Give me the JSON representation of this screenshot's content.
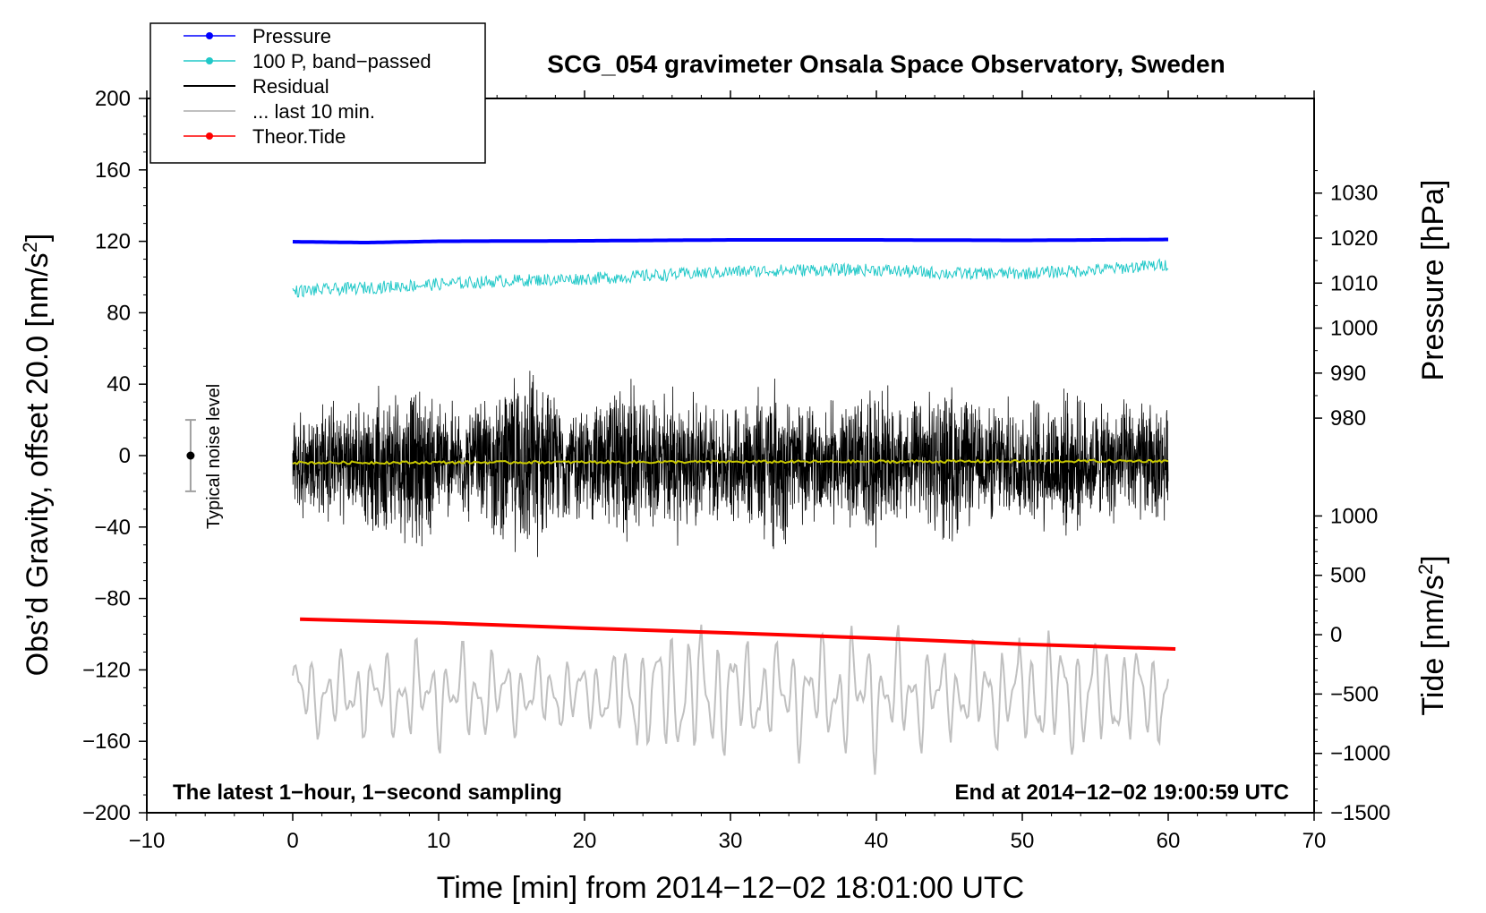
{
  "chart_data": {
    "type": "line",
    "title": "SCG_054 gravimeter Onsala Space Observatory, Sweden",
    "xlabel": "Time [min] from 2014−12−02 18:01:00 UTC",
    "ylabel_left": "Obs’d Gravity, offset 20.0 [nm/s²]",
    "ylabel_left_main": "Obs’d Gravity, offset 20.0 [nm/s",
    "ylabel_left_sup": "2",
    "ylabel_left_end": "]",
    "ylabel_right_top": "Pressure [hPa]",
    "ylabel_right_bottom_main": "Tide [nm/s",
    "ylabel_right_bottom_sup": "2",
    "ylabel_right_bottom_end": "]",
    "xlim": [
      -10,
      70
    ],
    "ylim": [
      -200,
      200
    ],
    "pressure_axis": {
      "data_range": [
        980,
        1030
      ],
      "maps_to_gravity": [
        21,
        147
      ]
    },
    "tide_axis": {
      "data_range": [
        -1500,
        1000
      ],
      "maps_to_gravity": [
        -200,
        -33.8
      ]
    },
    "x_ticks": [
      "−10",
      "0",
      "10",
      "20",
      "30",
      "40",
      "50",
      "60",
      "70"
    ],
    "x_tick_values": [
      -10,
      0,
      10,
      20,
      30,
      40,
      50,
      60,
      70
    ],
    "y_ticks": [
      "200",
      "160",
      "120",
      "80",
      "40",
      "0",
      "−40",
      "−80",
      "−120",
      "−160",
      "−200"
    ],
    "y_tick_values": [
      200,
      160,
      120,
      80,
      40,
      0,
      -40,
      -80,
      -120,
      -160,
      -200
    ],
    "pressure_ticks": [
      "1030",
      "1020",
      "1010",
      "1000",
      "990",
      "980"
    ],
    "pressure_tick_values": [
      1030,
      1020,
      1010,
      1000,
      990,
      980
    ],
    "tide_ticks": [
      "1000",
      "500",
      "0",
      "−500",
      "−1000",
      "−1500"
    ],
    "tide_tick_values": [
      1000,
      500,
      0,
      -500,
      -1000,
      -1500
    ],
    "legend": [
      {
        "label": "Pressure",
        "color": "#0000ff",
        "marker": true
      },
      {
        "label": "100 P, band−passed",
        "color": "#20c8c8",
        "marker": true
      },
      {
        "label": "Residual",
        "color": "#000000",
        "marker": false
      },
      {
        "label": "... last 10 min.",
        "color": "#c0c0c0",
        "marker": false
      },
      {
        "label": "Theor.Tide",
        "color": "#ff0000",
        "marker": true
      }
    ],
    "legend_placement": "top-left",
    "annotation_left": "The latest 1−hour, 1−second sampling",
    "annotation_right": "End at 2014−12−02 19:00:59 UTC",
    "noise_label": "Typical noise level",
    "noise_level": {
      "x": -7,
      "center": 0,
      "half_range": 20
    },
    "series": [
      {
        "name": "Pressure",
        "unit": "hPa",
        "color": "#0000ff",
        "x": [
          0,
          5,
          10,
          20,
          30,
          40,
          50,
          60
        ],
        "values": [
          1019.2,
          1019.0,
          1019.3,
          1019.4,
          1019.6,
          1019.6,
          1019.5,
          1019.7
        ]
      },
      {
        "name": "100 P, band-passed",
        "unit": "nm/s² (gravity axis)",
        "color": "#20c8c8",
        "x": [
          0,
          5,
          10,
          15,
          20,
          25,
          30,
          35,
          40,
          45,
          50,
          55,
          60
        ],
        "values": [
          92,
          94,
          96,
          98,
          99,
          101,
          103,
          104,
          104,
          102,
          102,
          104,
          107
        ],
        "noise_amplitude": 3.5
      },
      {
        "name": "Residual",
        "unit": "nm/s²",
        "color": "#000000",
        "x": [
          0,
          60
        ],
        "center": [
          -4,
          -4
        ],
        "envelope_x": [
          0,
          2,
          4,
          6,
          9,
          10,
          12,
          14,
          16,
          17,
          18,
          20,
          23,
          24,
          26,
          28,
          30,
          33,
          35,
          38,
          40,
          42,
          45,
          47,
          50,
          53,
          55,
          58,
          60
        ],
        "envelope": [
          30,
          40,
          35,
          45,
          50,
          40,
          35,
          45,
          60,
          55,
          40,
          35,
          55,
          35,
          50,
          40,
          35,
          55,
          35,
          40,
          50,
          35,
          50,
          35,
          40,
          45,
          35,
          40,
          35
        ]
      },
      {
        "name": "Residual smoothed",
        "unit": "nm/s²",
        "color": "#c8c800",
        "x": [
          0,
          60
        ],
        "values": [
          -4,
          -3
        ]
      },
      {
        "name": "... last 10 min.",
        "unit": "nm/s² (tide axis)",
        "color": "#c0c0c0",
        "x": [
          0,
          60
        ],
        "center": [
          -500,
          -500
        ],
        "amplitude_x": [
          0,
          10,
          20,
          27,
          33,
          38,
          45,
          53,
          60
        ],
        "amplitude": [
          400,
          500,
          350,
          750,
          500,
          700,
          450,
          650,
          450
        ]
      },
      {
        "name": "Theor.Tide",
        "unit": "nm/s²",
        "color": "#ff0000",
        "x": [
          0.5,
          10,
          20,
          30,
          40,
          50,
          60.5
        ],
        "values": [
          130,
          100,
          55,
          15,
          -30,
          -80,
          -120
        ]
      }
    ]
  }
}
